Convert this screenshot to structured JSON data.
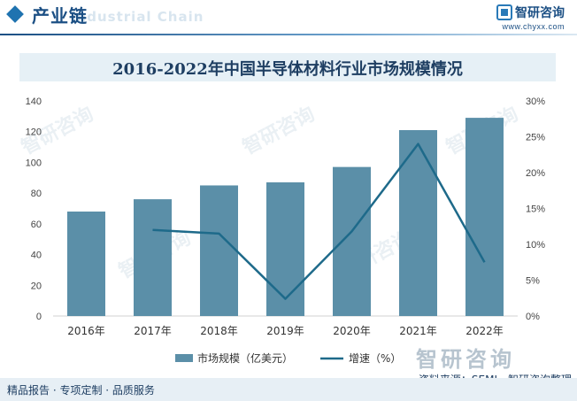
{
  "header": {
    "section_title": "产业链",
    "bg_text": "Industrial Chain",
    "logo_name": "智研咨询",
    "logo_url": "www.chyxx.com"
  },
  "watermark": {
    "text": "智研咨询"
  },
  "footer": {
    "left": "精品报告 · 专项定制 · 品质服务",
    "source": "资料来源：SEMI、智研咨询整理"
  },
  "colors": {
    "bar": "#5b8fa8",
    "line": "#1e6a8a",
    "axis_text": "#444444",
    "title": "#1e3e62"
  },
  "chart_data": {
    "type": "bar",
    "title": "2016-2022年中国半导体材料行业市场规模情况",
    "categories": [
      "2016年",
      "2017年",
      "2018年",
      "2019年",
      "2020年",
      "2021年",
      "2022年"
    ],
    "series": [
      {
        "name": "市场规模（亿美元）",
        "type": "bar",
        "axis": "left",
        "values": [
          68,
          76,
          85,
          87,
          97,
          121,
          129
        ]
      },
      {
        "name": "增速（%）",
        "type": "line",
        "axis": "right",
        "values": [
          null,
          12.0,
          11.5,
          2.4,
          11.8,
          24.0,
          7.5
        ]
      }
    ],
    "y_left": {
      "min": 0,
      "max": 140,
      "step": 20,
      "ticks": [
        "0",
        "20",
        "40",
        "60",
        "80",
        "100",
        "120",
        "140"
      ]
    },
    "y_right": {
      "min": 0,
      "max": 30,
      "step": 5,
      "ticks": [
        "0%",
        "5%",
        "10%",
        "15%",
        "20%",
        "25%",
        "30%"
      ]
    },
    "legend_position": "bottom",
    "grid": false
  }
}
